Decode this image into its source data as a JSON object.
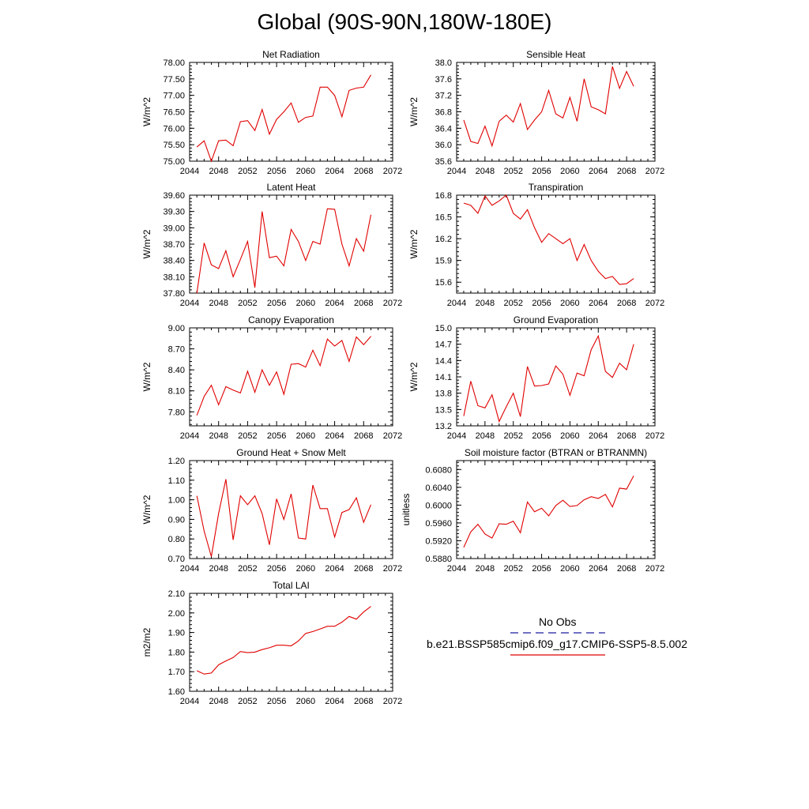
{
  "page_title": "Global (90S-90N,180W-180E)",
  "chart_data": [
    {
      "type": "line",
      "title": "Net Radiation",
      "ylabel": "W/m^2",
      "xlim": [
        2044,
        2072
      ],
      "xticks": [
        "2044",
        "2048",
        "2052",
        "2056",
        "2060",
        "2064",
        "2068",
        "2072"
      ],
      "ylim": [
        75.0,
        78.0
      ],
      "yticks": [
        "75.00",
        "75.50",
        "76.00",
        "76.50",
        "77.00",
        "77.50",
        "78.00"
      ],
      "series": [
        {
          "color": "#e00000",
          "x": [
            2045,
            2046,
            2047,
            2048,
            2049,
            2050,
            2051,
            2052,
            2053,
            2054,
            2055,
            2056,
            2057,
            2058,
            2059,
            2060,
            2061,
            2062,
            2063,
            2064,
            2065,
            2066,
            2067,
            2068,
            2069
          ],
          "values": [
            75.43,
            75.62,
            75.0,
            75.62,
            75.64,
            75.47,
            76.2,
            76.23,
            75.93,
            76.57,
            75.82,
            76.27,
            76.5,
            76.77,
            76.18,
            76.33,
            76.37,
            77.25,
            77.25,
            77.0,
            76.35,
            77.15,
            77.22,
            77.25,
            77.62
          ]
        }
      ]
    },
    {
      "type": "line",
      "title": "Sensible Heat",
      "ylabel": "W/m^2",
      "xlim": [
        2044,
        2072
      ],
      "xticks": [
        "2044",
        "2048",
        "2052",
        "2056",
        "2060",
        "2064",
        "2068",
        "2072"
      ],
      "ylim": [
        35.6,
        38.0
      ],
      "yticks": [
        "35.6",
        "36.0",
        "36.4",
        "36.8",
        "37.2",
        "37.6",
        "38.0"
      ],
      "series": [
        {
          "color": "#e00000",
          "x": [
            2045,
            2046,
            2047,
            2048,
            2049,
            2050,
            2051,
            2052,
            2053,
            2054,
            2055,
            2056,
            2057,
            2058,
            2059,
            2060,
            2061,
            2062,
            2063,
            2064,
            2065,
            2066,
            2067,
            2068,
            2069
          ],
          "values": [
            36.6,
            36.08,
            36.03,
            36.45,
            35.97,
            36.57,
            36.72,
            36.55,
            37.0,
            36.37,
            36.6,
            36.8,
            37.32,
            36.75,
            36.65,
            37.15,
            36.57,
            37.6,
            36.92,
            36.85,
            36.75,
            37.9,
            37.37,
            37.78,
            37.42
          ]
        }
      ]
    },
    {
      "type": "line",
      "title": "Latent Heat",
      "ylabel": "W/m^2",
      "xlim": [
        2044,
        2072
      ],
      "xticks": [
        "2044",
        "2048",
        "2052",
        "2056",
        "2060",
        "2064",
        "2068",
        "2072"
      ],
      "ylim": [
        37.8,
        39.6
      ],
      "yticks": [
        "37.80",
        "38.10",
        "38.40",
        "38.70",
        "39.00",
        "39.30",
        "39.60"
      ],
      "series": [
        {
          "color": "#e00000",
          "x": [
            2045,
            2046,
            2047,
            2048,
            2049,
            2050,
            2051,
            2052,
            2053,
            2054,
            2055,
            2056,
            2057,
            2058,
            2059,
            2060,
            2061,
            2062,
            2063,
            2064,
            2065,
            2066,
            2067,
            2068,
            2069
          ],
          "values": [
            37.8,
            38.72,
            38.32,
            38.25,
            38.58,
            38.1,
            38.42,
            38.75,
            37.9,
            39.3,
            38.45,
            38.48,
            38.3,
            38.97,
            38.75,
            38.4,
            38.75,
            38.7,
            39.35,
            39.34,
            38.7,
            38.3,
            38.8,
            38.57,
            39.24
          ]
        }
      ]
    },
    {
      "type": "line",
      "title": "Transpiration",
      "ylabel": "W/m^2",
      "xlim": [
        2044,
        2072
      ],
      "xticks": [
        "2044",
        "2048",
        "2052",
        "2056",
        "2060",
        "2064",
        "2068",
        "2072"
      ],
      "ylim": [
        15.45,
        16.8
      ],
      "yticks": [
        "15.6",
        "15.9",
        "16.2",
        "16.5",
        "16.8"
      ],
      "ytick_values": [
        15.6,
        15.9,
        16.2,
        16.5,
        16.8
      ],
      "series": [
        {
          "color": "#e00000",
          "x": [
            2045,
            2046,
            2047,
            2048,
            2049,
            2050,
            2051,
            2052,
            2053,
            2054,
            2055,
            2056,
            2057,
            2058,
            2059,
            2060,
            2061,
            2062,
            2063,
            2064,
            2065,
            2066,
            2067,
            2068,
            2069
          ],
          "values": [
            16.69,
            16.66,
            16.55,
            16.79,
            16.66,
            16.72,
            16.8,
            16.55,
            16.47,
            16.6,
            16.35,
            16.15,
            16.27,
            16.2,
            16.13,
            16.2,
            15.9,
            16.12,
            15.9,
            15.75,
            15.65,
            15.68,
            15.57,
            15.58,
            15.65
          ]
        }
      ]
    },
    {
      "type": "line",
      "title": "Canopy Evaporation",
      "ylabel": "W/m^2",
      "xlim": [
        2044,
        2072
      ],
      "xticks": [
        "2044",
        "2048",
        "2052",
        "2056",
        "2060",
        "2064",
        "2068",
        "2072"
      ],
      "ylim": [
        7.6,
        9.0
      ],
      "yticks": [
        "7.80",
        "8.10",
        "8.40",
        "8.70",
        "9.00"
      ],
      "ytick_values": [
        7.8,
        8.1,
        8.4,
        8.7,
        9.0
      ],
      "series": [
        {
          "color": "#e00000",
          "x": [
            2045,
            2046,
            2047,
            2048,
            2049,
            2050,
            2051,
            2052,
            2053,
            2054,
            2055,
            2056,
            2057,
            2058,
            2059,
            2060,
            2061,
            2062,
            2063,
            2064,
            2065,
            2066,
            2067,
            2068,
            2069
          ],
          "values": [
            7.75,
            8.02,
            8.18,
            7.9,
            8.16,
            8.11,
            8.07,
            8.38,
            8.08,
            8.4,
            8.18,
            8.37,
            8.05,
            8.48,
            8.49,
            8.44,
            8.68,
            8.46,
            8.84,
            8.74,
            8.82,
            8.52,
            8.87,
            8.76,
            8.88
          ]
        }
      ]
    },
    {
      "type": "line",
      "title": "Ground Evaporation",
      "ylabel": "W/m^2",
      "xlim": [
        2044,
        2072
      ],
      "xticks": [
        "2044",
        "2048",
        "2052",
        "2056",
        "2060",
        "2064",
        "2068",
        "2072"
      ],
      "ylim": [
        13.2,
        15.0
      ],
      "yticks": [
        "13.2",
        "13.5",
        "13.8",
        "14.1",
        "14.4",
        "14.7",
        "15.0"
      ],
      "series": [
        {
          "color": "#e00000",
          "x": [
            2045,
            2046,
            2047,
            2048,
            2049,
            2050,
            2051,
            2052,
            2053,
            2054,
            2055,
            2056,
            2057,
            2058,
            2059,
            2060,
            2061,
            2062,
            2063,
            2064,
            2065,
            2066,
            2067,
            2068,
            2069
          ],
          "values": [
            13.38,
            14.02,
            13.57,
            13.53,
            13.77,
            13.28,
            13.55,
            13.8,
            13.37,
            14.29,
            13.93,
            13.94,
            13.97,
            14.3,
            14.15,
            13.76,
            14.17,
            14.12,
            14.6,
            14.85,
            14.2,
            14.09,
            14.35,
            14.23,
            14.7
          ]
        }
      ]
    },
    {
      "type": "line",
      "title": "Ground Heat + Snow Melt",
      "ylabel": "W/m^2",
      "xlim": [
        2044,
        2072
      ],
      "xticks": [
        "2044",
        "2048",
        "2052",
        "2056",
        "2060",
        "2064",
        "2068",
        "2072"
      ],
      "ylim": [
        0.7,
        1.2
      ],
      "yticks": [
        "0.70",
        "0.80",
        "0.90",
        "1.00",
        "1.10",
        "1.20"
      ],
      "series": [
        {
          "color": "#e00000",
          "x": [
            2045,
            2046,
            2047,
            2048,
            2049,
            2050,
            2051,
            2052,
            2053,
            2054,
            2055,
            2056,
            2057,
            2058,
            2059,
            2060,
            2061,
            2062,
            2063,
            2064,
            2065,
            2066,
            2067,
            2068,
            2069
          ],
          "values": [
            1.02,
            0.84,
            0.71,
            0.93,
            1.105,
            0.795,
            1.02,
            0.975,
            1.02,
            0.93,
            0.77,
            1.005,
            0.9,
            1.03,
            0.805,
            0.8,
            1.075,
            0.955,
            0.955,
            0.81,
            0.935,
            0.95,
            1.01,
            0.885,
            0.975
          ]
        }
      ]
    },
    {
      "type": "line",
      "title": "Soil moisture factor (BTRAN or BTRANMN)",
      "ylabel": "unitless",
      "xlim": [
        2044,
        2072
      ],
      "xticks": [
        "2044",
        "2048",
        "2052",
        "2056",
        "2060",
        "2064",
        "2068",
        "2072"
      ],
      "ylim": [
        0.588,
        0.61
      ],
      "yticks": [
        "0.5880",
        "0.5920",
        "0.5960",
        "0.6000",
        "0.6040",
        "0.6080"
      ],
      "ytick_values": [
        0.588,
        0.592,
        0.596,
        0.6,
        0.604,
        0.608
      ],
      "series": [
        {
          "color": "#e00000",
          "x": [
            2045,
            2046,
            2047,
            2048,
            2049,
            2050,
            2051,
            2052,
            2053,
            2054,
            2055,
            2056,
            2057,
            2058,
            2059,
            2060,
            2061,
            2062,
            2063,
            2064,
            2065,
            2066,
            2067,
            2068,
            2069
          ],
          "values": [
            0.5905,
            0.594,
            0.5957,
            0.5935,
            0.5926,
            0.5958,
            0.5957,
            0.5964,
            0.5938,
            0.6007,
            0.5985,
            0.5993,
            0.5976,
            0.5999,
            0.6011,
            0.5997,
            0.5999,
            0.6012,
            0.6019,
            0.6015,
            0.6024,
            0.5996,
            0.6038,
            0.6036,
            0.6066
          ]
        }
      ]
    },
    {
      "type": "line",
      "title": "Total LAI",
      "ylabel": "m2/m2",
      "xlim": [
        2044,
        2072
      ],
      "xticks": [
        "2044",
        "2048",
        "2052",
        "2056",
        "2060",
        "2064",
        "2068",
        "2072"
      ],
      "ylim": [
        1.6,
        2.1
      ],
      "yticks": [
        "1.60",
        "1.70",
        "1.80",
        "1.90",
        "2.00",
        "2.10"
      ],
      "series": [
        {
          "color": "#e00000",
          "x": [
            2045,
            2046,
            2047,
            2048,
            2049,
            2050,
            2051,
            2052,
            2053,
            2054,
            2055,
            2056,
            2057,
            2058,
            2059,
            2060,
            2061,
            2062,
            2063,
            2064,
            2065,
            2066,
            2067,
            2068,
            2069
          ],
          "values": [
            1.705,
            1.688,
            1.693,
            1.735,
            1.755,
            1.772,
            1.803,
            1.797,
            1.8,
            1.813,
            1.822,
            1.835,
            1.835,
            1.832,
            1.857,
            1.895,
            1.905,
            1.918,
            1.932,
            1.932,
            1.953,
            1.982,
            1.968,
            2.005,
            2.033
          ]
        }
      ]
    }
  ],
  "legend": {
    "entries": [
      {
        "label": "No Obs",
        "color": "#1a1aa0",
        "style": "dashed"
      },
      {
        "label": "b.e21.BSSP585cmip6.f09_g17.CMIP6-SSP5-8.5.002",
        "color": "#e00000",
        "style": "solid"
      }
    ]
  }
}
